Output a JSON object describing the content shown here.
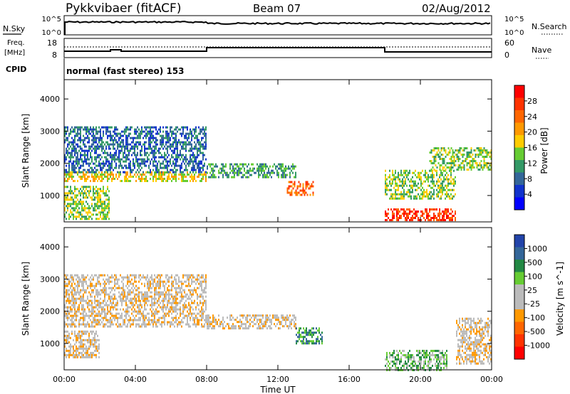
{
  "header": {
    "title": "Pykkvibaer (fitACF)",
    "beam": "Beam 07",
    "date": "02/Aug/2012"
  },
  "summary_panels": {
    "nsky_label": "N.Sky",
    "nsky_ticks": [
      "10^5",
      "10^0"
    ],
    "nsearch_label": "N.Search",
    "nsearch_ticks": [
      "10^5",
      "10^0"
    ],
    "freq_label_line1": "Freq.",
    "freq_label_line2": "[MHz]",
    "freq_ticks": [
      "18",
      "8"
    ],
    "nave_label": "Nave",
    "nave_ticks": [
      "60",
      "0"
    ],
    "cpid_label": "CPID",
    "cpid_text": "normal (fast stereo) 153"
  },
  "axes": {
    "ylabel": "Slant Range [km]",
    "yticks": [
      "4000",
      "3000",
      "2000",
      "1000"
    ],
    "xlabel": "Time UT",
    "xticks": [
      "00:00",
      "04:00",
      "08:00",
      "12:00",
      "16:00",
      "20:00",
      "00:00"
    ]
  },
  "colorbars": {
    "power": {
      "label": "Power [dB]",
      "ticks": [
        "28",
        "24",
        "20",
        "16",
        "12",
        "8",
        "4"
      ],
      "colors": [
        "#ff0000",
        "#ff3300",
        "#ff6600",
        "#ff9900",
        "#ffcc00",
        "#66cc33",
        "#339966",
        "#336699",
        "#1133cc",
        "#0000ff"
      ]
    },
    "velocity": {
      "label": "Velocity [m s^-1]",
      "ticks": [
        "1000",
        "500",
        "100",
        "25",
        "-25",
        "-100",
        "-500",
        "-1000"
      ],
      "colors": [
        "#2244aa",
        "#336699",
        "#228844",
        "#66cc33",
        "#bbbbbb",
        "#bbbbbb",
        "#ff9900",
        "#ff6600",
        "#ff3300",
        "#ff0000"
      ]
    }
  },
  "chart_data": [
    {
      "type": "heatmap",
      "panel": "power",
      "x_range": [
        "00:00",
        "24:00"
      ],
      "ylim": [
        180,
        4600
      ],
      "ylabel": "Slant Range [km]",
      "xlabel": "",
      "colorbar_label": "Power [dB]",
      "colorbar_range": [
        0,
        30
      ],
      "echo_regions": [
        {
          "t_start": 0.0,
          "t_end": 8.0,
          "r_low": 1450,
          "r_high": 1750,
          "power": 18
        },
        {
          "t_start": 0.0,
          "t_end": 8.0,
          "r_low": 1750,
          "r_high": 3150,
          "power": 8
        },
        {
          "t_start": 0.0,
          "t_end": 2.5,
          "r_low": 250,
          "r_high": 1300,
          "power": 14
        },
        {
          "t_start": 8.0,
          "t_end": 13.0,
          "r_low": 1600,
          "r_high": 2000,
          "power": 10
        },
        {
          "t_start": 12.5,
          "t_end": 14.0,
          "r_low": 1050,
          "r_high": 1450,
          "power": 24
        },
        {
          "t_start": 18.0,
          "t_end": 22.0,
          "r_low": 900,
          "r_high": 1800,
          "power": 12
        },
        {
          "t_start": 18.0,
          "t_end": 22.0,
          "r_low": 250,
          "r_high": 600,
          "power": 26
        },
        {
          "t_start": 20.5,
          "t_end": 24.0,
          "r_low": 1800,
          "r_high": 2500,
          "power": 14
        }
      ]
    },
    {
      "type": "heatmap",
      "panel": "velocity",
      "x_range": [
        "00:00",
        "24:00"
      ],
      "ylim": [
        180,
        4600
      ],
      "ylabel": "Slant Range [km]",
      "xlabel": "Time UT",
      "colorbar_label": "Velocity [m s^-1]",
      "colorbar_range": [
        -1000,
        1000
      ],
      "echo_regions": [
        {
          "t_start": 0.0,
          "t_end": 8.0,
          "r_low": 1500,
          "r_high": 3150,
          "velocity": 0
        },
        {
          "t_start": 0.0,
          "t_end": 2.0,
          "r_low": 600,
          "r_high": 1400,
          "velocity": -150
        },
        {
          "t_start": 8.0,
          "t_end": 13.0,
          "r_low": 1450,
          "r_high": 1900,
          "velocity": 0
        },
        {
          "t_start": 13.0,
          "t_end": 14.5,
          "r_low": 1000,
          "r_high": 1500,
          "velocity": 500
        },
        {
          "t_start": 18.0,
          "t_end": 21.5,
          "r_low": 200,
          "r_high": 800,
          "velocity": 300
        },
        {
          "t_start": 22.0,
          "t_end": 24.0,
          "r_low": 400,
          "r_high": 1800,
          "velocity": -200
        }
      ]
    }
  ]
}
